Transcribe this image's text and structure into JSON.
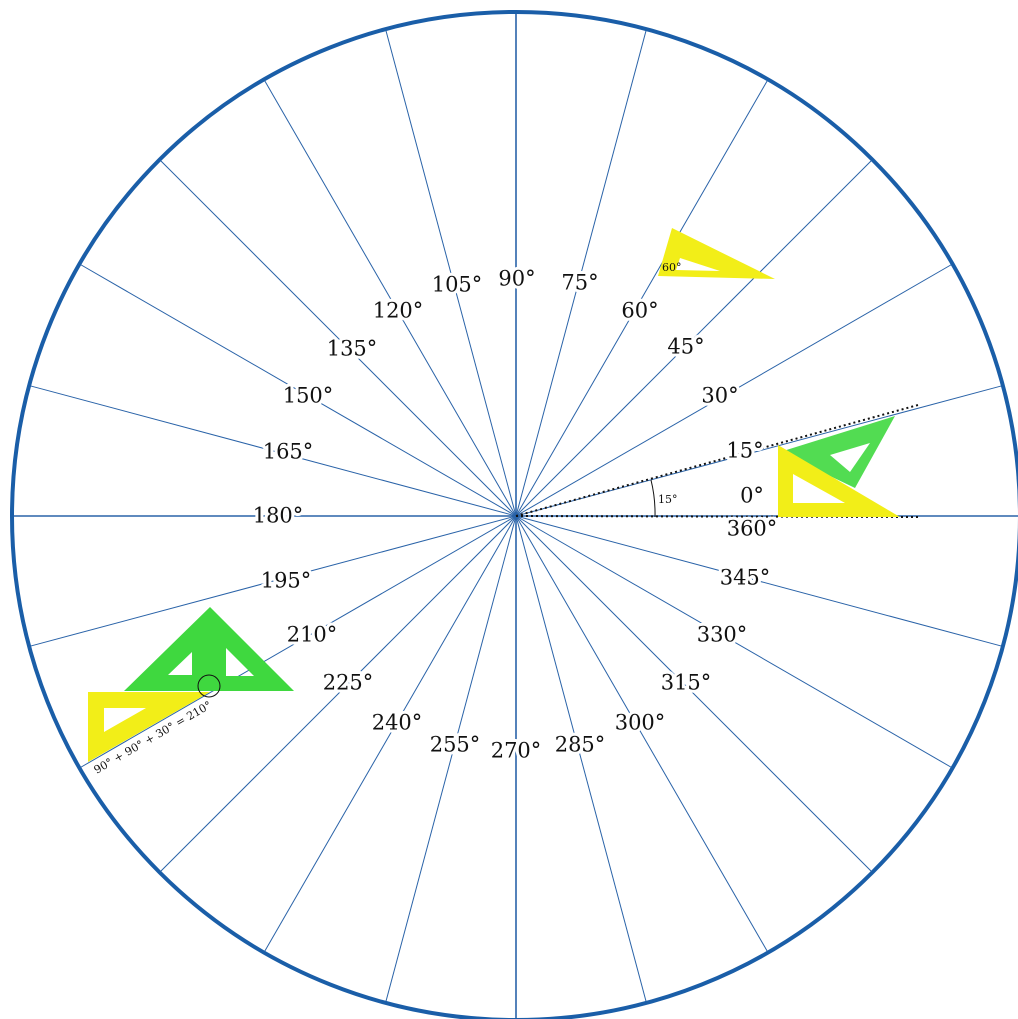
{
  "labels": [
    "0°",
    "15°",
    "30°",
    "45°",
    "60°",
    "75°",
    "90°",
    "105°",
    "120°",
    "135°",
    "150°",
    "165°",
    "180°",
    "195°",
    "210°",
    "225°",
    "240°",
    "255°",
    "270°",
    "285°",
    "300°",
    "315°",
    "330°",
    "345°",
    "360°"
  ],
  "annotations": {
    "set_square_angle": "60°",
    "angle_arc": "15°",
    "sum": "90° + 90° + 30° = 210°"
  }
}
